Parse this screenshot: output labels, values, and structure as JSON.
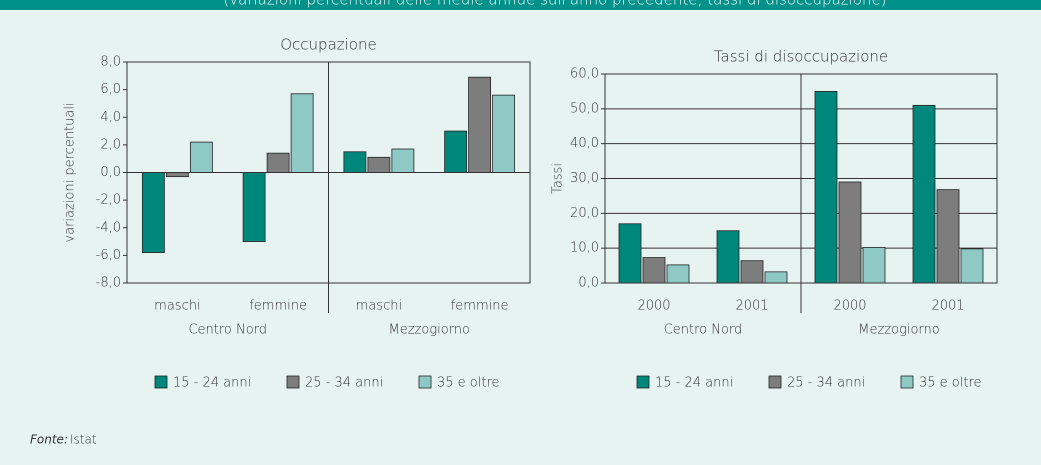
{
  "header": {
    "text": "(variazioni percentuali delle medie annue sull'anno precedente; tassi di disoccupazione)"
  },
  "source": {
    "label": "Fonte:",
    "text": "Istat"
  },
  "chart_data": [
    {
      "type": "bar",
      "title": "Occupazione",
      "y_label": "variazioni percentuali",
      "categories": [
        "maschi",
        "femmine",
        "maschi",
        "femmine"
      ],
      "groups": [
        "Centro Nord",
        "Mezzogiorno"
      ],
      "series": [
        {
          "name": "15 - 24 anni",
          "color": "#00877c",
          "values": [
            -5.8,
            -5.0,
            1.5,
            3.0
          ]
        },
        {
          "name": "25 - 34 anni",
          "color": "#7d7d7d",
          "values": [
            -0.3,
            1.4,
            1.1,
            6.9
          ]
        },
        {
          "name": "35 e oltre",
          "color": "#8fc9c6",
          "values": [
            2.2,
            5.7,
            1.7,
            5.6
          ]
        }
      ],
      "ylim": [
        -8,
        8
      ],
      "yticks": [
        {
          "value": -8,
          "label": "-8,0"
        },
        {
          "value": -6,
          "label": "-6,0"
        },
        {
          "value": -4,
          "label": "-4,0"
        },
        {
          "value": -2,
          "label": "-2,0"
        },
        {
          "value": 0,
          "label": "0,0"
        },
        {
          "value": 2,
          "label": "2,0"
        },
        {
          "value": 4,
          "label": "4,0"
        },
        {
          "value": 6,
          "label": "6,0"
        },
        {
          "value": 8,
          "label": "8,0"
        }
      ],
      "grid": false,
      "legend": "bottom"
    },
    {
      "type": "bar",
      "title": "Tassi di disoccupazione",
      "y_label": "Tassi",
      "categories": [
        "2000",
        "2001",
        "2000",
        "2001"
      ],
      "groups": [
        "Centro Nord",
        "Mezzogiorno"
      ],
      "series": [
        {
          "name": "15 - 24 anni",
          "color": "#00877c",
          "values": [
            17.0,
            15.0,
            55.0,
            51.0
          ]
        },
        {
          "name": "25 - 34 anni",
          "color": "#7d7d7d",
          "values": [
            7.3,
            6.4,
            29.0,
            26.8
          ]
        },
        {
          "name": "35 e oltre",
          "color": "#8fc9c6",
          "values": [
            5.2,
            3.2,
            10.2,
            9.8
          ]
        }
      ],
      "ylim": [
        0,
        60
      ],
      "yticks": [
        {
          "value": 0,
          "label": "0,0"
        },
        {
          "value": 10,
          "label": "10,0"
        },
        {
          "value": 20,
          "label": "20,0"
        },
        {
          "value": 30,
          "label": "30,0"
        },
        {
          "value": 40,
          "label": "40,0"
        },
        {
          "value": 50,
          "label": "50,0"
        },
        {
          "value": 60,
          "label": "60,0"
        }
      ],
      "grid": true,
      "legend": "bottom"
    }
  ]
}
